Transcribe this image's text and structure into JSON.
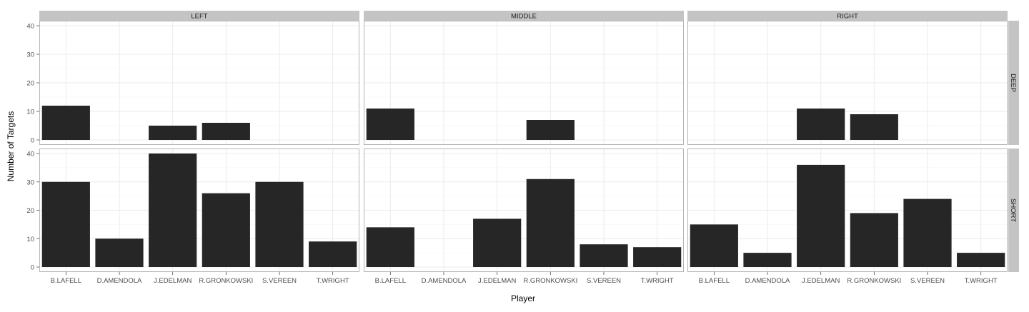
{
  "chart_data": {
    "type": "bar",
    "facet_columns": [
      "LEFT",
      "MIDDLE",
      "RIGHT"
    ],
    "facet_rows": [
      "DEEP",
      "SHORT"
    ],
    "categories": [
      "B.LAFELL",
      "D.AMENDOLA",
      "J.EDELMAN",
      "R.GRONKOWSKI",
      "S.VEREEN",
      "T.WRIGHT"
    ],
    "xlabel": "Player",
    "ylabel": "Number of Targets",
    "ylim": [
      0,
      40
    ],
    "yticks": [
      0,
      10,
      20,
      30,
      40
    ],
    "grid": true,
    "bar_color": "#262626",
    "strip_color": "#c4c4c4",
    "panels": [
      {
        "column": "LEFT",
        "row": "DEEP",
        "values": [
          12,
          0,
          5,
          6,
          0,
          0
        ]
      },
      {
        "column": "MIDDLE",
        "row": "DEEP",
        "values": [
          11,
          0,
          0,
          7,
          0,
          0
        ]
      },
      {
        "column": "RIGHT",
        "row": "DEEP",
        "values": [
          0,
          0,
          11,
          9,
          0,
          0
        ]
      },
      {
        "column": "LEFT",
        "row": "SHORT",
        "values": [
          30,
          10,
          40,
          26,
          30,
          9
        ]
      },
      {
        "column": "MIDDLE",
        "row": "SHORT",
        "values": [
          14,
          0,
          17,
          31,
          8,
          7
        ]
      },
      {
        "column": "RIGHT",
        "row": "SHORT",
        "values": [
          15,
          5,
          36,
          19,
          24,
          5
        ]
      }
    ]
  }
}
